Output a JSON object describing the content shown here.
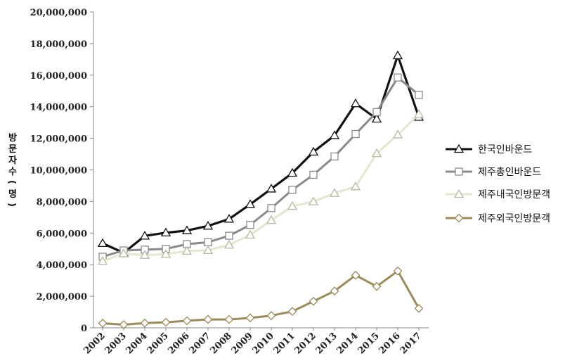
{
  "chart_data": {
    "type": "line",
    "title": "",
    "xlabel": "",
    "ylabel": "방문자수(명)",
    "ylim": [
      0,
      20000000
    ],
    "yticks": [
      "0",
      "2,000,000",
      "4,000,000",
      "6,000,000",
      "8,000,000",
      "10,000,000",
      "12,000,000",
      "14,000,000",
      "16,000,000",
      "18,000,000",
      "20,000,000"
    ],
    "categories": [
      "2002",
      "2003",
      "2004",
      "2005",
      "2006",
      "2007",
      "2008",
      "2009",
      "2010",
      "2011",
      "2012",
      "2013",
      "2014",
      "2015",
      "2016",
      "2017"
    ],
    "grid": false,
    "legend_position": "right",
    "series": [
      {
        "name": "한국인바운드",
        "color": "#111111",
        "marker": "triangle",
        "values": [
          5350000,
          4750000,
          5820000,
          6020000,
          6160000,
          6450000,
          6890000,
          7820000,
          8800000,
          9800000,
          11140000,
          12180000,
          14200000,
          13230000,
          17240000,
          13340000
        ]
      },
      {
        "name": "제주총인바운드",
        "color": "#8a8a8a",
        "marker": "square",
        "values": [
          4500000,
          4900000,
          4950000,
          5000000,
          5300000,
          5420000,
          5830000,
          6520000,
          7580000,
          8740000,
          9690000,
          10850000,
          12270000,
          13660000,
          15850000,
          14750000
        ]
      },
      {
        "name": "제주내국인방문객",
        "color": "#e6e6cf",
        "marker": "triangle",
        "values": [
          4220000,
          4700000,
          4600000,
          4660000,
          4860000,
          4910000,
          5250000,
          5880000,
          6810000,
          7700000,
          7990000,
          8520000,
          8940000,
          11040000,
          12230000,
          13520000
        ]
      },
      {
        "name": "제주외국인방문객",
        "color": "#9b8a5a",
        "marker": "diamond",
        "values": [
          290000,
          200000,
          300000,
          350000,
          450000,
          530000,
          530000,
          630000,
          770000,
          1040000,
          1680000,
          2330000,
          3330000,
          2620000,
          3600000,
          1230000
        ]
      }
    ]
  }
}
